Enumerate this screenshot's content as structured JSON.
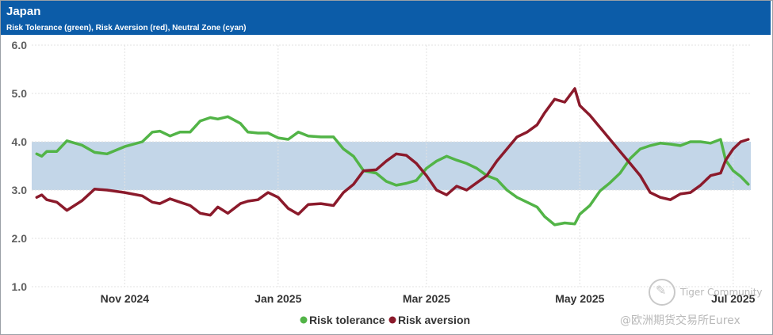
{
  "header": {
    "title": "Japan",
    "subtitle": "Risk Tolerance (green), Risk Aversion (red), Neutral Zone (cyan)"
  },
  "watermark": {
    "brand": "Tiger Community",
    "source": "@欧洲期货交易所Eurex"
  },
  "colors": {
    "header_bg": "#0c5ca8",
    "tolerance": "#52b447",
    "aversion": "#8b1a2b",
    "neutral_band": "#c3d6e8"
  },
  "chart_data": {
    "type": "line",
    "title": "Japan",
    "subtitle": "Risk Tolerance (green), Risk Aversion (red), Neutral Zone (cyan)",
    "x_range": [
      "2024-09-25",
      "2025-07-08"
    ],
    "ylim": [
      1.0,
      6.0
    ],
    "y_ticks": [
      "1.0",
      "2.0",
      "3.0",
      "4.0",
      "5.0",
      "6.0"
    ],
    "x_ticks": [
      {
        "label": "Nov 2024",
        "date": "2024-11-01"
      },
      {
        "label": "Jan 2025",
        "date": "2025-01-01"
      },
      {
        "label": "Mar 2025",
        "date": "2025-03-01"
      },
      {
        "label": "May 2025",
        "date": "2025-05-01"
      },
      {
        "label": "Jul 2025",
        "date": "2025-07-01"
      }
    ],
    "neutral_zone": {
      "low": 3.0,
      "high": 4.0
    },
    "grid": true,
    "legend_position": "bottom",
    "series": [
      {
        "name": "Risk tolerance",
        "color": "#52b447",
        "points": [
          [
            "2024-09-27",
            3.75
          ],
          [
            "2024-09-29",
            3.7
          ],
          [
            "2024-10-01",
            3.8
          ],
          [
            "2024-10-05",
            3.8
          ],
          [
            "2024-10-09",
            4.02
          ],
          [
            "2024-10-15",
            3.93
          ],
          [
            "2024-10-20",
            3.78
          ],
          [
            "2024-10-25",
            3.75
          ],
          [
            "2024-11-01",
            3.9
          ],
          [
            "2024-11-08",
            4.0
          ],
          [
            "2024-11-12",
            4.2
          ],
          [
            "2024-11-15",
            4.22
          ],
          [
            "2024-11-19",
            4.12
          ],
          [
            "2024-11-23",
            4.2
          ],
          [
            "2024-11-27",
            4.2
          ],
          [
            "2024-12-01",
            4.43
          ],
          [
            "2024-12-05",
            4.5
          ],
          [
            "2024-12-08",
            4.47
          ],
          [
            "2024-12-12",
            4.52
          ],
          [
            "2024-12-17",
            4.38
          ],
          [
            "2024-12-20",
            4.2
          ],
          [
            "2024-12-24",
            4.18
          ],
          [
            "2024-12-28",
            4.18
          ],
          [
            "2025-01-01",
            4.08
          ],
          [
            "2025-01-05",
            4.05
          ],
          [
            "2025-01-09",
            4.2
          ],
          [
            "2025-01-13",
            4.12
          ],
          [
            "2025-01-18",
            4.1
          ],
          [
            "2025-01-23",
            4.1
          ],
          [
            "2025-01-27",
            3.85
          ],
          [
            "2025-01-31",
            3.7
          ],
          [
            "2025-02-04",
            3.4
          ],
          [
            "2025-02-09",
            3.35
          ],
          [
            "2025-02-13",
            3.18
          ],
          [
            "2025-02-17",
            3.1
          ],
          [
            "2025-02-21",
            3.14
          ],
          [
            "2025-02-25",
            3.2
          ],
          [
            "2025-03-01",
            3.45
          ],
          [
            "2025-03-05",
            3.6
          ],
          [
            "2025-03-09",
            3.7
          ],
          [
            "2025-03-13",
            3.62
          ],
          [
            "2025-03-17",
            3.55
          ],
          [
            "2025-03-21",
            3.45
          ],
          [
            "2025-03-25",
            3.3
          ],
          [
            "2025-03-29",
            3.22
          ],
          [
            "2025-04-02",
            3.0
          ],
          [
            "2025-04-06",
            2.85
          ],
          [
            "2025-04-10",
            2.75
          ],
          [
            "2025-04-14",
            2.65
          ],
          [
            "2025-04-17",
            2.45
          ],
          [
            "2025-04-21",
            2.28
          ],
          [
            "2025-04-25",
            2.32
          ],
          [
            "2025-04-29",
            2.3
          ],
          [
            "2025-05-01",
            2.5
          ],
          [
            "2025-05-05",
            2.68
          ],
          [
            "2025-05-09",
            2.98
          ],
          [
            "2025-05-13",
            3.15
          ],
          [
            "2025-05-17",
            3.35
          ],
          [
            "2025-05-21",
            3.65
          ],
          [
            "2025-05-25",
            3.85
          ],
          [
            "2025-05-29",
            3.92
          ],
          [
            "2025-06-02",
            3.97
          ],
          [
            "2025-06-06",
            3.95
          ],
          [
            "2025-06-10",
            3.92
          ],
          [
            "2025-06-14",
            4.0
          ],
          [
            "2025-06-18",
            4.0
          ],
          [
            "2025-06-22",
            3.97
          ],
          [
            "2025-06-26",
            4.05
          ],
          [
            "2025-06-28",
            3.62
          ],
          [
            "2025-07-01",
            3.4
          ],
          [
            "2025-07-04",
            3.28
          ],
          [
            "2025-07-07",
            3.12
          ]
        ]
      },
      {
        "name": "Risk aversion",
        "color": "#8b1a2b",
        "points": [
          [
            "2024-09-27",
            2.85
          ],
          [
            "2024-09-29",
            2.9
          ],
          [
            "2024-10-01",
            2.8
          ],
          [
            "2024-10-05",
            2.75
          ],
          [
            "2024-10-09",
            2.58
          ],
          [
            "2024-10-15",
            2.78
          ],
          [
            "2024-10-20",
            3.02
          ],
          [
            "2024-10-25",
            3.0
          ],
          [
            "2024-11-01",
            2.95
          ],
          [
            "2024-11-08",
            2.88
          ],
          [
            "2024-11-12",
            2.75
          ],
          [
            "2024-11-15",
            2.72
          ],
          [
            "2024-11-19",
            2.82
          ],
          [
            "2024-11-23",
            2.75
          ],
          [
            "2024-11-27",
            2.68
          ],
          [
            "2024-12-01",
            2.52
          ],
          [
            "2024-12-05",
            2.48
          ],
          [
            "2024-12-08",
            2.65
          ],
          [
            "2024-12-12",
            2.52
          ],
          [
            "2024-12-17",
            2.72
          ],
          [
            "2024-12-20",
            2.77
          ],
          [
            "2024-12-24",
            2.8
          ],
          [
            "2024-12-28",
            2.95
          ],
          [
            "2025-01-01",
            2.85
          ],
          [
            "2025-01-05",
            2.62
          ],
          [
            "2025-01-09",
            2.5
          ],
          [
            "2025-01-13",
            2.7
          ],
          [
            "2025-01-18",
            2.72
          ],
          [
            "2025-01-23",
            2.68
          ],
          [
            "2025-01-27",
            2.95
          ],
          [
            "2025-01-31",
            3.12
          ],
          [
            "2025-02-04",
            3.4
          ],
          [
            "2025-02-09",
            3.42
          ],
          [
            "2025-02-13",
            3.6
          ],
          [
            "2025-02-17",
            3.75
          ],
          [
            "2025-02-21",
            3.72
          ],
          [
            "2025-02-25",
            3.55
          ],
          [
            "2025-03-01",
            3.3
          ],
          [
            "2025-03-05",
            3.0
          ],
          [
            "2025-03-09",
            2.9
          ],
          [
            "2025-03-13",
            3.08
          ],
          [
            "2025-03-17",
            3.0
          ],
          [
            "2025-03-21",
            3.15
          ],
          [
            "2025-03-25",
            3.3
          ],
          [
            "2025-03-29",
            3.6
          ],
          [
            "2025-04-02",
            3.85
          ],
          [
            "2025-04-06",
            4.1
          ],
          [
            "2025-04-10",
            4.2
          ],
          [
            "2025-04-14",
            4.35
          ],
          [
            "2025-04-17",
            4.6
          ],
          [
            "2025-04-21",
            4.88
          ],
          [
            "2025-04-25",
            4.82
          ],
          [
            "2025-04-29",
            5.1
          ],
          [
            "2025-05-01",
            4.75
          ],
          [
            "2025-05-05",
            4.55
          ],
          [
            "2025-05-09",
            4.3
          ],
          [
            "2025-05-13",
            4.05
          ],
          [
            "2025-05-17",
            3.8
          ],
          [
            "2025-05-21",
            3.55
          ],
          [
            "2025-05-25",
            3.3
          ],
          [
            "2025-05-29",
            2.95
          ],
          [
            "2025-06-02",
            2.85
          ],
          [
            "2025-06-06",
            2.8
          ],
          [
            "2025-06-10",
            2.92
          ],
          [
            "2025-06-14",
            2.95
          ],
          [
            "2025-06-18",
            3.1
          ],
          [
            "2025-06-22",
            3.3
          ],
          [
            "2025-06-26",
            3.35
          ],
          [
            "2025-06-28",
            3.62
          ],
          [
            "2025-07-01",
            3.85
          ],
          [
            "2025-07-04",
            4.0
          ],
          [
            "2025-07-07",
            4.05
          ]
        ]
      }
    ]
  }
}
